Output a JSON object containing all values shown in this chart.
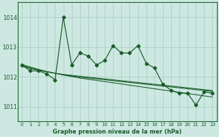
{
  "title": "Graphe pression niveau de la mer (hPa)",
  "bg_color": "#cce8e0",
  "grid_color": "#aacfc8",
  "line_color": "#1a5c2a",
  "x_labels": [
    "0",
    "1",
    "2",
    "3",
    "4",
    "5",
    "6",
    "7",
    "8",
    "9",
    "10",
    "11",
    "12",
    "13",
    "14",
    "15",
    "16",
    "17",
    "18",
    "19",
    "20",
    "21",
    "22",
    "23"
  ],
  "ylim": [
    1010.5,
    1014.5
  ],
  "yticks": [
    1011,
    1012,
    1013,
    1014
  ],
  "main_series": [
    1012.4,
    1012.2,
    1012.2,
    1012.1,
    1011.9,
    1014.0,
    1012.4,
    1012.8,
    1012.7,
    1012.4,
    1012.55,
    1013.05,
    1012.8,
    1012.8,
    1013.05,
    1012.45,
    1012.3,
    1011.75,
    1011.55,
    1011.45,
    1011.45,
    1011.05,
    1011.5,
    1011.45
  ],
  "trend_series": [
    [
      1012.35,
      1012.28,
      1012.22,
      1012.17,
      1012.12,
      1012.08,
      1012.05,
      1012.02,
      1011.99,
      1011.96,
      1011.93,
      1011.9,
      1011.87,
      1011.84,
      1011.81,
      1011.78,
      1011.75,
      1011.72,
      1011.69,
      1011.66,
      1011.63,
      1011.6,
      1011.57,
      1011.54
    ],
    [
      1012.38,
      1012.3,
      1012.23,
      1012.17,
      1012.12,
      1012.07,
      1012.03,
      1011.99,
      1011.96,
      1011.93,
      1011.9,
      1011.87,
      1011.84,
      1011.81,
      1011.78,
      1011.75,
      1011.72,
      1011.69,
      1011.66,
      1011.63,
      1011.6,
      1011.57,
      1011.54,
      1011.51
    ],
    [
      1012.42,
      1012.33,
      1012.25,
      1012.18,
      1012.12,
      1012.06,
      1012.01,
      1011.96,
      1011.92,
      1011.88,
      1011.84,
      1011.8,
      1011.76,
      1011.72,
      1011.68,
      1011.64,
      1011.6,
      1011.56,
      1011.52,
      1011.48,
      1011.44,
      1011.4,
      1011.36,
      1011.32
    ]
  ]
}
